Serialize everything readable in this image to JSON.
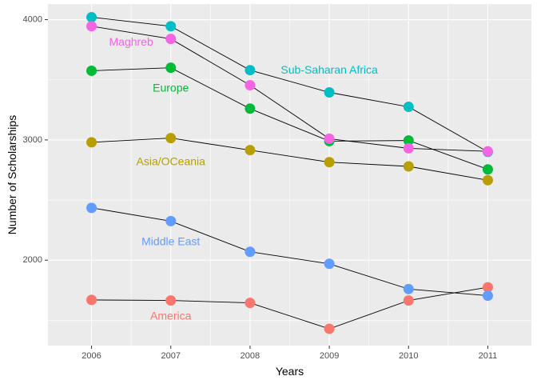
{
  "chart_data": {
    "type": "line",
    "xlabel": "Years",
    "ylabel": "Number of Scholarships",
    "x": [
      2006,
      2007,
      2008,
      2009,
      2010,
      2011
    ],
    "xlim": [
      2005.45,
      2011.55
    ],
    "ylim": [
      1290,
      4130
    ],
    "y_ticks": [
      2000,
      3000,
      4000
    ],
    "y_minor_ticks": [
      1500,
      2500,
      3500
    ],
    "grid": true,
    "legend": "none",
    "series": [
      {
        "name": "America",
        "color": "#F8766D",
        "values": [
          1670,
          1665,
          1645,
          1430,
          1665,
          1775
        ],
        "label_x": 2007.0,
        "label_y": 1530
      },
      {
        "name": "Asia/OCeania",
        "color": "#B79F00",
        "values": [
          2980,
          3015,
          2915,
          2815,
          2780,
          2665
        ],
        "label_x": 2007.0,
        "label_y": 2815
      },
      {
        "name": "Europe",
        "color": "#00BA38",
        "values": [
          3575,
          3600,
          3260,
          2990,
          2995,
          2755
        ],
        "label_x": 2007.0,
        "label_y": 3425
      },
      {
        "name": "Sub-Saharan Africa",
        "color": "#00BFC4",
        "values": [
          4020,
          3945,
          3580,
          3395,
          3275,
          2900
        ],
        "label_x": 2009.0,
        "label_y": 3575
      },
      {
        "name": "Middle East",
        "color": "#619CFF",
        "values": [
          2435,
          2325,
          2070,
          1970,
          1760,
          1705
        ],
        "label_x": 2007.0,
        "label_y": 2150
      },
      {
        "name": "Maghreb",
        "color": "#F564E3",
        "values": [
          3945,
          3840,
          3455,
          3010,
          2930,
          2905
        ],
        "label_x": 2006.5,
        "label_y": 3810
      }
    ]
  }
}
